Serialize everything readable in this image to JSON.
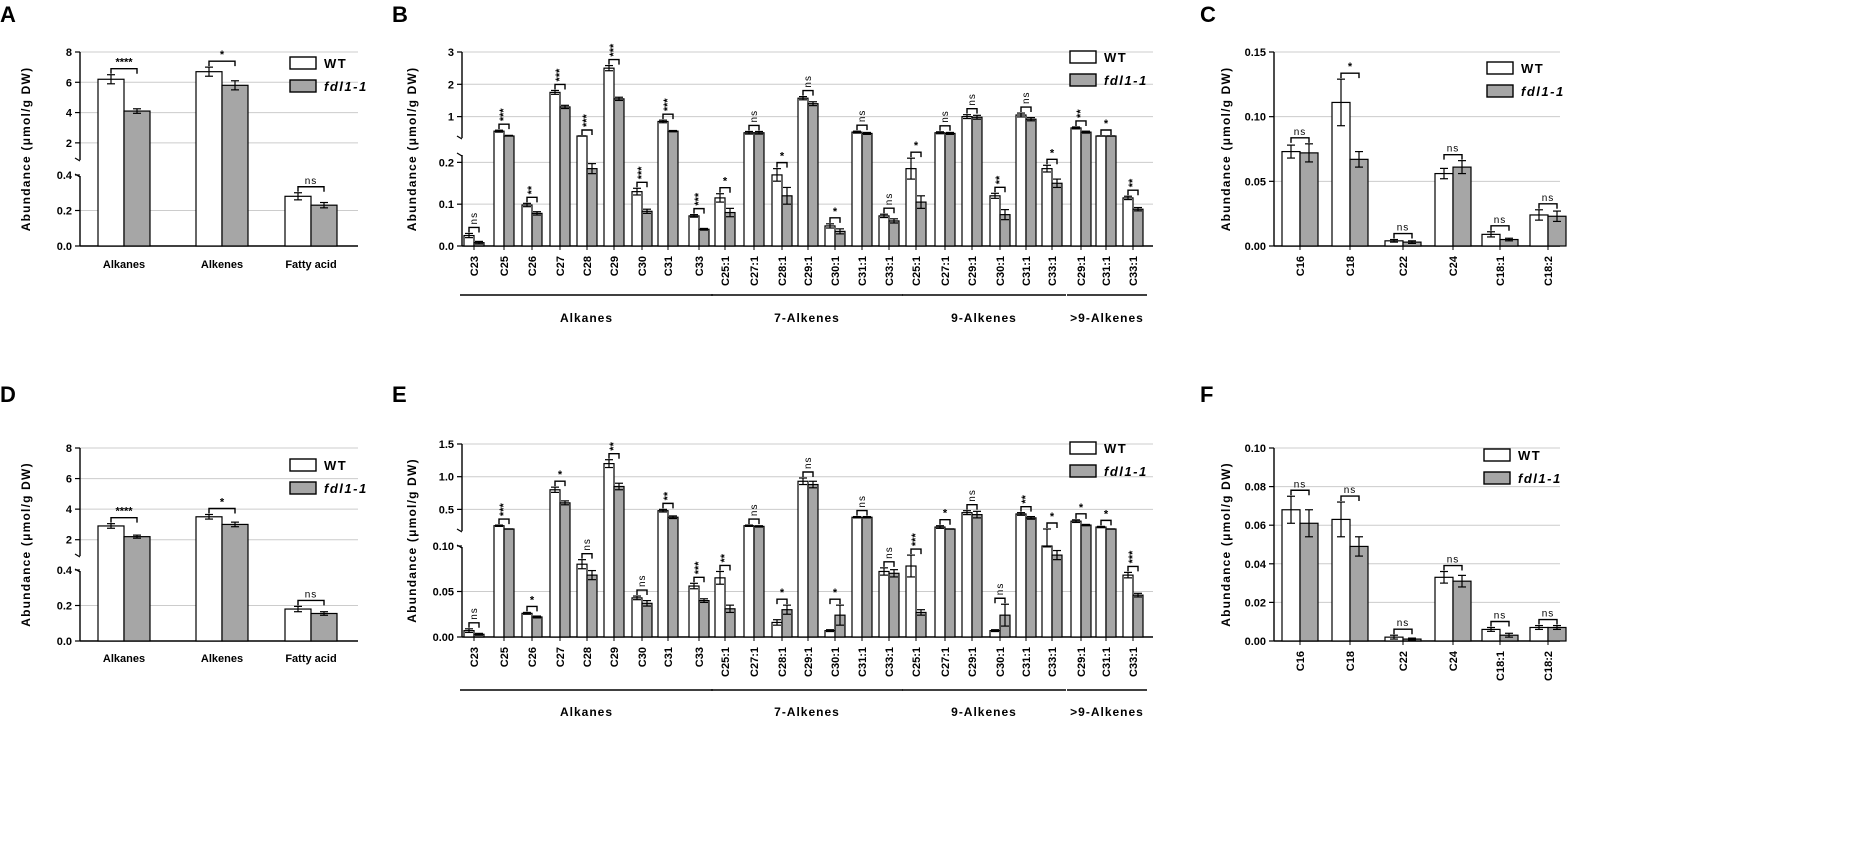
{
  "legend": {
    "wt": "WT",
    "mutant": "fdl1-1"
  },
  "colors": {
    "wt_fill": "#ffffff",
    "mutant_fill": "#a6a6a6",
    "grid": "#cccccc"
  },
  "chart_data": [
    {
      "panel": "A",
      "type": "bar",
      "ylabel": "Abundance (μmol/g DW)",
      "categories": [
        "Alkanes",
        "Alkenes",
        "Fatty acid"
      ],
      "axis_upper": {
        "ylim": [
          1,
          8
        ],
        "ticks": [
          "2",
          "4",
          "6",
          "8"
        ]
      },
      "axis_lower": {
        "ylim": [
          0,
          0.4
        ],
        "ticks": [
          "0.0",
          "0.2",
          "0.4"
        ]
      },
      "series": [
        {
          "name": "WT",
          "values": [
            6.2,
            6.7,
            0.28
          ],
          "errors": [
            0.3,
            0.3,
            0.02
          ]
        },
        {
          "name": "fdl1-1",
          "values": [
            4.1,
            5.8,
            0.23
          ],
          "errors": [
            0.15,
            0.3,
            0.015
          ]
        }
      ],
      "significance": [
        "****",
        "*",
        "ns"
      ]
    },
    {
      "panel": "B",
      "type": "bar",
      "ylabel": "Abundance (μmol/g DW)",
      "categories": [
        "C23",
        "C25",
        "C26",
        "C27",
        "C28",
        "C29",
        "C30",
        "C31",
        "C33",
        "C25:1",
        "C27:1",
        "C28:1",
        "C29:1",
        "C30:1",
        "C31:1",
        "C33:1",
        "C25:1",
        "C27:1",
        "C29:1",
        "C30:1",
        "C31:1",
        "C33:1",
        "C29:1",
        "C31:1",
        "C33:1"
      ],
      "axis_upper": {
        "ylim": [
          0.4,
          3
        ],
        "ticks": [
          "1",
          "2",
          "3"
        ]
      },
      "axis_lower": {
        "ylim": [
          0,
          0.22
        ],
        "ticks": [
          "0.0",
          "0.1",
          "0.2"
        ]
      },
      "series": [
        {
          "name": "WT",
          "values": [
            0.025,
            0.55,
            0.098,
            1.75,
            0.3,
            2.5,
            0.13,
            0.85,
            0.072,
            0.115,
            0.5,
            0.17,
            1.57,
            0.048,
            0.52,
            0.072,
            0.185,
            0.5,
            1.0,
            0.12,
            1.05,
            0.185,
            0.65,
            0.35,
            0.115
          ],
          "errors": [
            0.005,
            0.03,
            0.004,
            0.06,
            0.01,
            0.08,
            0.008,
            0.04,
            0.003,
            0.01,
            0.04,
            0.015,
            0.05,
            0.005,
            0.03,
            0.004,
            0.025,
            0.03,
            0.06,
            0.006,
            0.06,
            0.008,
            0.03,
            0.02,
            0.004
          ]
        },
        {
          "name": "fdl1-1",
          "values": [
            0.008,
            0.4,
            0.078,
            1.3,
            0.185,
            1.55,
            0.083,
            0.55,
            0.04,
            0.08,
            0.5,
            0.12,
            1.4,
            0.035,
            0.48,
            0.06,
            0.105,
            0.48,
            0.98,
            0.075,
            0.92,
            0.15,
            0.52,
            0.3,
            0.088
          ],
          "errors": [
            0.003,
            0.02,
            0.004,
            0.05,
            0.012,
            0.05,
            0.005,
            0.02,
            0.002,
            0.01,
            0.04,
            0.02,
            0.06,
            0.006,
            0.03,
            0.005,
            0.015,
            0.03,
            0.06,
            0.012,
            0.05,
            0.01,
            0.03,
            0.02,
            0.004
          ]
        }
      ],
      "significance": [
        "ns",
        "***",
        "**",
        "***",
        "***",
        "***",
        "***",
        "***",
        "***",
        "*",
        "ns",
        "*",
        "ns",
        "*",
        "ns",
        "ns",
        "*",
        "ns",
        "ns",
        "**",
        "ns",
        "*",
        "**",
        "*",
        "**"
      ],
      "groups": [
        {
          "label": "Alkanes",
          "from": 0,
          "to": 8
        },
        {
          "label": "7-Alkenes",
          "from": 9,
          "to": 15
        },
        {
          "label": "9-Alkenes",
          "from": 16,
          "to": 21
        },
        {
          "label": ">9-Alkenes",
          "from": 22,
          "to": 24
        }
      ]
    },
    {
      "panel": "C",
      "type": "bar",
      "ylabel": "Abundance (μmol/g DW)",
      "categories": [
        "C16",
        "C18",
        "C22",
        "C24",
        "C18:1",
        "C18:2"
      ],
      "ylim": [
        0,
        0.15
      ],
      "ticks": [
        "0.00",
        "0.05",
        "0.10",
        "0.15"
      ],
      "series": [
        {
          "name": "WT",
          "values": [
            0.073,
            0.111,
            0.004,
            0.056,
            0.009,
            0.024
          ],
          "errors": [
            0.005,
            0.018,
            0.001,
            0.004,
            0.002,
            0.004
          ]
        },
        {
          "name": "fdl1-1",
          "values": [
            0.072,
            0.067,
            0.003,
            0.061,
            0.005,
            0.023
          ],
          "errors": [
            0.007,
            0.006,
            0.001,
            0.005,
            0.001,
            0.004
          ]
        }
      ],
      "significance": [
        "ns",
        "*",
        "ns",
        "ns",
        "ns",
        "ns"
      ]
    },
    {
      "panel": "D",
      "type": "bar",
      "ylabel": "Abundance (μmol/g DW)",
      "categories": [
        "Alkanes",
        "Alkenes",
        "Fatty acid"
      ],
      "axis_upper": {
        "ylim": [
          1,
          8
        ],
        "ticks": [
          "2",
          "4",
          "6",
          "8"
        ]
      },
      "axis_lower": {
        "ylim": [
          0,
          0.4
        ],
        "ticks": [
          "0.0",
          "0.2",
          "0.4"
        ]
      },
      "series": [
        {
          "name": "WT",
          "values": [
            2.9,
            3.5,
            0.18
          ],
          "errors": [
            0.15,
            0.15,
            0.015
          ]
        },
        {
          "name": "fdl1-1",
          "values": [
            2.2,
            3.0,
            0.155
          ],
          "errors": [
            0.1,
            0.15,
            0.01
          ]
        }
      ],
      "significance": [
        "****",
        "*",
        "ns"
      ]
    },
    {
      "panel": "E",
      "type": "bar",
      "ylabel": "Abundance (μmol/g DW)",
      "categories": [
        "C23",
        "C25",
        "C26",
        "C27",
        "C28",
        "C29",
        "C30",
        "C31",
        "C33",
        "C25:1",
        "C27:1",
        "C28:1",
        "C29:1",
        "C30:1",
        "C31:1",
        "C33:1",
        "C25:1",
        "C27:1",
        "C29:1",
        "C30:1",
        "C31:1",
        "C33:1",
        "C29:1",
        "C31:1",
        "C33:1"
      ],
      "axis_upper": {
        "ylim": [
          0.2,
          1.5
        ],
        "ticks": [
          "0.5",
          "1.0",
          "1.5"
        ]
      },
      "axis_lower": {
        "ylim": [
          0,
          0.1
        ],
        "ticks": [
          "0.00",
          "0.05",
          "0.10"
        ]
      },
      "series": [
        {
          "name": "WT",
          "values": [
            0.007,
            0.25,
            0.026,
            0.8,
            0.08,
            1.2,
            0.043,
            0.48,
            0.056,
            0.065,
            0.25,
            0.016,
            0.93,
            0.007,
            0.38,
            0.072,
            0.078,
            0.23,
            0.45,
            0.007,
            0.43,
            0.1,
            0.32,
            0.23,
            0.068
          ],
          "errors": [
            0.002,
            0.01,
            0.001,
            0.04,
            0.005,
            0.06,
            0.002,
            0.02,
            0.003,
            0.007,
            0.01,
            0.003,
            0.05,
            0.001,
            0.01,
            0.004,
            0.012,
            0.02,
            0.03,
            0.001,
            0.02,
            0.001,
            0.02,
            0.01,
            0.003
          ]
        },
        {
          "name": "fdl1-1",
          "values": [
            0.003,
            0.16,
            0.022,
            0.6,
            0.068,
            0.85,
            0.037,
            0.38,
            0.04,
            0.031,
            0.24,
            0.03,
            0.88,
            0.024,
            0.38,
            0.07,
            0.027,
            0.16,
            0.42,
            0.024,
            0.37,
            0.09,
            0.26,
            0.19,
            0.046
          ],
          "errors": [
            0.001,
            0.01,
            0.001,
            0.03,
            0.005,
            0.05,
            0.003,
            0.02,
            0.002,
            0.004,
            0.01,
            0.005,
            0.05,
            0.011,
            0.01,
            0.004,
            0.003,
            0.01,
            0.05,
            0.012,
            0.02,
            0.005,
            0.01,
            0.01,
            0.002
          ]
        }
      ],
      "significance": [
        "ns",
        "***",
        "*",
        "*",
        "ns",
        "**",
        "ns",
        "**",
        "***",
        "**",
        "ns",
        "*",
        "ns",
        "*",
        "ns",
        "ns",
        "***",
        "*",
        "ns",
        "ns",
        "**",
        "*",
        "*",
        "*",
        "***"
      ],
      "groups": [
        {
          "label": "Alkanes",
          "from": 0,
          "to": 8
        },
        {
          "label": "7-Alkenes",
          "from": 9,
          "to": 15
        },
        {
          "label": "9-Alkenes",
          "from": 16,
          "to": 21
        },
        {
          "label": ">9-Alkenes",
          "from": 22,
          "to": 24
        }
      ]
    },
    {
      "panel": "F",
      "type": "bar",
      "ylabel": "Abundance (μmol/g DW)",
      "categories": [
        "C16",
        "C18",
        "C22",
        "C24",
        "C18:1",
        "C18:2"
      ],
      "ylim": [
        0,
        0.1
      ],
      "ticks": [
        "0.00",
        "0.02",
        "0.04",
        "0.06",
        "0.08",
        "0.10"
      ],
      "series": [
        {
          "name": "WT",
          "values": [
            0.068,
            0.063,
            0.002,
            0.033,
            0.006,
            0.007
          ],
          "errors": [
            0.007,
            0.009,
            0.001,
            0.003,
            0.001,
            0.001
          ]
        },
        {
          "name": "fdl1-1",
          "values": [
            0.061,
            0.049,
            0.001,
            0.031,
            0.003,
            0.007
          ],
          "errors": [
            0.007,
            0.005,
            0.0005,
            0.003,
            0.001,
            0.001
          ]
        }
      ],
      "significance": [
        "ns",
        "ns",
        "ns",
        "ns",
        "ns",
        "ns"
      ]
    }
  ]
}
